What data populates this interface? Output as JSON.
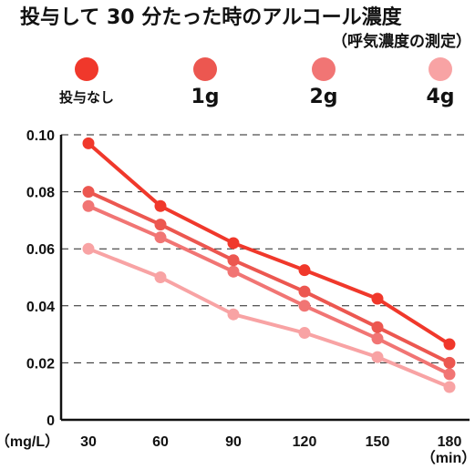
{
  "chart_data": {
    "type": "line",
    "title": "投与して 30 分たった時のアルコール濃度",
    "subtitle": "（呼気濃度の測定）",
    "x": [
      30,
      60,
      90,
      120,
      150,
      180
    ],
    "x_tick_labels": [
      "30",
      "60",
      "90",
      "120",
      "150",
      "180"
    ],
    "xlabel": "（min）",
    "ylabel": "（mg/L）",
    "ylim": [
      0,
      0.1
    ],
    "y_ticks": [
      "0",
      "0.02",
      "0.04",
      "0.06",
      "0.08",
      "0.10"
    ],
    "grid": "horizontal dashed",
    "legend_position": "top",
    "series": [
      {
        "name": "投与なし",
        "color": "#f0382b",
        "values": [
          0.097,
          0.075,
          0.062,
          0.0525,
          0.0425,
          0.0265
        ]
      },
      {
        "name": "1g",
        "color": "#ec5750",
        "values": [
          0.08,
          0.0685,
          0.056,
          0.045,
          0.0325,
          0.02
        ]
      },
      {
        "name": "2g",
        "color": "#f17574",
        "values": [
          0.075,
          0.064,
          0.052,
          0.04,
          0.0285,
          0.016
        ]
      },
      {
        "name": "4g",
        "color": "#f8a3a4",
        "values": [
          0.06,
          0.05,
          0.037,
          0.0305,
          0.022,
          0.0115
        ]
      }
    ]
  }
}
